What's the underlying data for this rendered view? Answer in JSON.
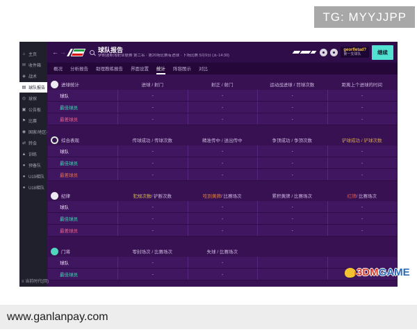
{
  "overlay": {
    "tg_badge": "TG: MYYJJPP",
    "watermark": "www.ganlanpay.com",
    "logo": {
      "red": "3DM",
      "blue": "GAME"
    }
  },
  "colors": {
    "bg_purple": "#381153",
    "row_purple": "#411660",
    "sidebar_dark": "#20202c",
    "accent_teal": "#52e0d0",
    "best_teal": "#3fd9b5",
    "worst_pink": "#e8628c",
    "name_yellow": "#f5c451"
  },
  "header": {
    "back": "←",
    "forward": "→",
    "title": "球队报告",
    "subtitle": "伊朗波斯湾职业联赛 第二名 · 第20场比赛有进球 · 下场比赛 5月9日 (五-14:30)",
    "user_name": "georfletad?",
    "user_team": "第一支球队",
    "continue_label": "继续"
  },
  "tabs": [
    {
      "label": "概况",
      "active": false
    },
    {
      "label": "分析报告",
      "active": false
    },
    {
      "label": "助理教练报告",
      "active": false
    },
    {
      "label": "界面设置",
      "active": false
    },
    {
      "label": "统计",
      "active": true
    },
    {
      "label": "阵容图示",
      "active": false
    },
    {
      "label": "对比",
      "active": false
    }
  ],
  "sidebar": {
    "items": [
      {
        "label": "主页",
        "glyph": "⌂",
        "icon": "home-icon",
        "selected": false
      },
      {
        "label": "收件箱",
        "glyph": "✉",
        "icon": "inbox-icon",
        "selected": false
      },
      {
        "label": "战术",
        "glyph": "◈",
        "icon": "tactics-icon",
        "selected": false
      },
      {
        "label": "球队报告",
        "glyph": "▤",
        "icon": "report-icon",
        "selected": true
      },
      {
        "label": "球探",
        "glyph": "◎",
        "icon": "scouting-icon",
        "selected": false
      },
      {
        "label": "公告板",
        "glyph": "▣",
        "icon": "board-icon",
        "selected": false
      },
      {
        "label": "比赛",
        "glyph": "⚑",
        "icon": "fixtures-icon",
        "selected": false
      },
      {
        "label": "国家/地区与球队信息",
        "glyph": "◉",
        "icon": "world-icon",
        "selected": false
      },
      {
        "label": "转会",
        "glyph": "⇄",
        "icon": "transfers-icon",
        "selected": false
      },
      {
        "label": "训练",
        "glyph": "▲",
        "icon": "training-icon",
        "selected": false
      },
      {
        "label": "预备队",
        "glyph": "●",
        "icon": "person-icon",
        "selected": false
      },
      {
        "label": "U19梯队",
        "glyph": "●",
        "icon": "person-icon",
        "selected": false
      },
      {
        "label": "U18梯队",
        "glyph": "●",
        "icon": "person-icon",
        "selected": false
      }
    ],
    "footer_glyph": "≡",
    "footer": "当前时代(回)"
  },
  "sections": [
    {
      "label": "进球统计",
      "icon": "goals-section-icon",
      "icon_style": "ic-solid-white",
      "columns": [
        {
          "parts": [
            {
              "text": "进球 / 射门",
              "color": "#c9b6dd"
            }
          ]
        },
        {
          "parts": [
            {
              "text": "射正 / 射门",
              "color": "#c9b6dd"
            }
          ]
        },
        {
          "parts": [
            {
              "text": "运动战进球 / 罚球次数",
              "color": "#c9b6dd"
            }
          ]
        },
        {
          "parts": [
            {
              "text": "距离上个进球的时间",
              "color": "#c9b6dd"
            }
          ]
        }
      ],
      "rows": [
        {
          "label": "球队",
          "color": "#e8e2f0",
          "values": [
            "-",
            "-",
            "-",
            "-"
          ]
        },
        {
          "label": "最佳球员",
          "color": "#3fd9b5",
          "values": [
            "-",
            "-",
            "-",
            "-"
          ]
        },
        {
          "label": "最差球员",
          "color": "#e8628c",
          "values": [
            "-",
            "-",
            "-",
            "-"
          ]
        }
      ]
    },
    {
      "label": "综合表现",
      "icon": "performance-section-icon",
      "icon_style": "ic-ring-white",
      "columns": [
        {
          "parts": [
            {
              "text": "传球成功 / 传球次数",
              "color": "#c9b6dd"
            }
          ]
        },
        {
          "parts": [
            {
              "text": "精准传中 / 送出传中",
              "color": "#c9b6dd"
            }
          ]
        },
        {
          "parts": [
            {
              "text": "争顶成功 / 争顶次数",
              "color": "#c9b6dd"
            }
          ]
        },
        {
          "parts": [
            {
              "text": "铲球成功 / 铲球次数",
              "color": "#d9a44e"
            }
          ]
        }
      ],
      "rows": [
        {
          "label": "球队",
          "color": "#e8e2f0",
          "values": [
            "-",
            "-",
            "-",
            "-"
          ]
        },
        {
          "label": "最佳球员",
          "color": "#3fd9b5",
          "values": [
            "-",
            "-",
            "-",
            "-"
          ]
        },
        {
          "label": "最差球员",
          "color": "#e0714d",
          "values": [
            "-",
            "-",
            "-",
            "-"
          ]
        }
      ]
    },
    {
      "label": "纪律",
      "icon": "discipline-section-icon",
      "icon_style": "ic-solid-white",
      "columns": [
        {
          "parts": [
            {
              "text": "犯规次数",
              "color": "#d9b94d"
            },
            {
              "text": " / 铲断次数",
              "color": "#c9b6dd"
            }
          ]
        },
        {
          "parts": [
            {
              "text": "吃到黄牌",
              "color": "#e0823f"
            },
            {
              "text": " / 比赛场次",
              "color": "#c9b6dd"
            }
          ]
        },
        {
          "parts": [
            {
              "text": "累积黄牌 / 比赛场次",
              "color": "#c9b6dd"
            }
          ]
        },
        {
          "parts": [
            {
              "text": "红牌",
              "color": "#e0564a"
            },
            {
              "text": " / 比赛场次",
              "color": "#c9b6dd"
            }
          ]
        }
      ],
      "rows": [
        {
          "label": "球队",
          "color": "#e8e2f0",
          "values": [
            "-",
            "-",
            "-",
            "-"
          ]
        },
        {
          "label": "最佳球员",
          "color": "#3fd9b5",
          "values": [
            "-",
            "-",
            "-",
            "-"
          ]
        },
        {
          "label": "最差球员",
          "color": "#e8628c",
          "values": [
            "-",
            "-",
            "-",
            "-"
          ]
        }
      ]
    },
    {
      "label": "门将",
      "icon": "goalkeeping-section-icon",
      "icon_style": "ic-solid-teal",
      "columns": [
        {
          "parts": [
            {
              "text": "零封场次 / 比赛场次",
              "color": "#c9b6dd"
            }
          ]
        },
        {
          "parts": [
            {
              "text": "失球 / 比赛场次",
              "color": "#c9b6dd"
            }
          ]
        },
        {
          "parts": [
            {
              "text": "",
              "color": "#c9b6dd"
            }
          ]
        },
        {
          "parts": [
            {
              "text": "",
              "color": "#c9b6dd"
            }
          ]
        }
      ],
      "rows": [
        {
          "label": "球队",
          "color": "#e8e2f0",
          "values": [
            "-",
            "-",
            "",
            ""
          ]
        },
        {
          "label": "最佳球员",
          "color": "#3fd9b5",
          "values": [
            "-",
            "-",
            "",
            ""
          ]
        }
      ]
    }
  ]
}
